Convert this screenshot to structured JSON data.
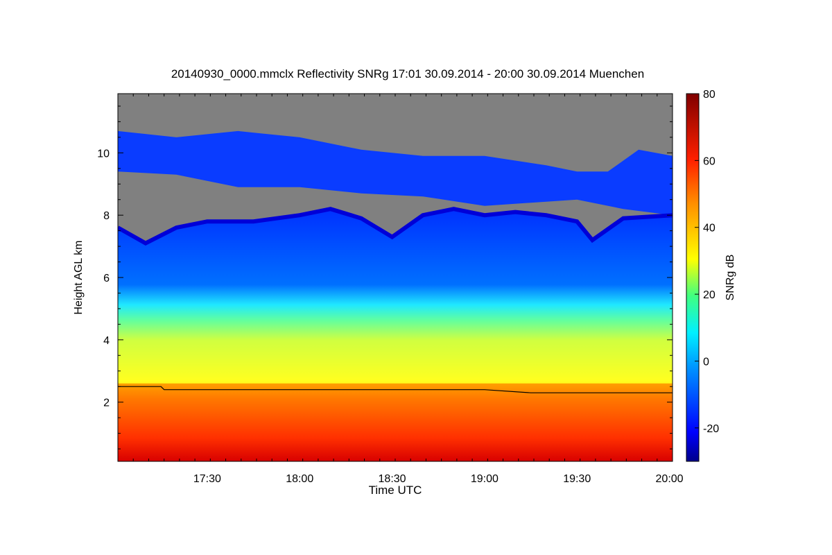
{
  "colors": {
    "no_signal": "#808080",
    "colormap": [
      "#00008a",
      "#0000ff",
      "#0080ff",
      "#00e0ff",
      "#40ff80",
      "#c0ff30",
      "#ffff00",
      "#ffb000",
      "#ff5000",
      "#e00000",
      "#800000"
    ]
  },
  "chart_data": {
    "type": "heatmap",
    "title": "20140930_0000.mmclx Reflectivity SNRg   17:01 30.09.2014 - 20:00 30.09.2014 Muenchen",
    "xlabel": "Time UTC",
    "ylabel": "Height AGL km",
    "colorbar_label": "SNRg dB",
    "xlim": [
      "17:01",
      "20:01"
    ],
    "xticks": [
      "17:30",
      "18:00",
      "18:30",
      "19:00",
      "19:30",
      "20:00"
    ],
    "ylim": [
      0.1,
      11.9
    ],
    "yticks": [
      "2",
      "4",
      "6",
      "8",
      "10"
    ],
    "clim": [
      -30,
      80
    ],
    "cbticks": [
      "-20",
      "0",
      "20",
      "40",
      "60",
      "80"
    ],
    "echo_top_km": [
      {
        "t": "17:01",
        "h": 7.6
      },
      {
        "t": "17:10",
        "h": 7.1
      },
      {
        "t": "17:20",
        "h": 7.6
      },
      {
        "t": "17:30",
        "h": 7.8
      },
      {
        "t": "17:45",
        "h": 7.8
      },
      {
        "t": "18:00",
        "h": 8.0
      },
      {
        "t": "18:10",
        "h": 8.2
      },
      {
        "t": "18:20",
        "h": 7.9
      },
      {
        "t": "18:30",
        "h": 7.3
      },
      {
        "t": "18:40",
        "h": 8.0
      },
      {
        "t": "18:50",
        "h": 8.2
      },
      {
        "t": "19:00",
        "h": 8.0
      },
      {
        "t": "19:10",
        "h": 8.1
      },
      {
        "t": "19:20",
        "h": 8.0
      },
      {
        "t": "19:30",
        "h": 7.8
      },
      {
        "t": "19:35",
        "h": 7.2
      },
      {
        "t": "19:45",
        "h": 7.9
      },
      {
        "t": "20:01",
        "h": 8.0
      }
    ],
    "cirrus_base_km": [
      {
        "t": "17:01",
        "h": 9.4
      },
      {
        "t": "17:20",
        "h": 9.3
      },
      {
        "t": "17:40",
        "h": 8.9
      },
      {
        "t": "18:00",
        "h": 8.9
      },
      {
        "t": "18:20",
        "h": 8.7
      },
      {
        "t": "18:40",
        "h": 8.6
      },
      {
        "t": "19:00",
        "h": 8.3
      },
      {
        "t": "19:15",
        "h": 8.4
      },
      {
        "t": "19:30",
        "h": 8.5
      },
      {
        "t": "19:45",
        "h": 8.2
      },
      {
        "t": "20:01",
        "h": 8.0
      }
    ],
    "cirrus_top_km": [
      {
        "t": "17:01",
        "h": 10.7
      },
      {
        "t": "17:20",
        "h": 10.5
      },
      {
        "t": "17:40",
        "h": 10.7
      },
      {
        "t": "18:00",
        "h": 10.5
      },
      {
        "t": "18:20",
        "h": 10.1
      },
      {
        "t": "18:40",
        "h": 9.9
      },
      {
        "t": "19:00",
        "h": 9.9
      },
      {
        "t": "19:20",
        "h": 9.6
      },
      {
        "t": "19:30",
        "h": 9.4
      },
      {
        "t": "19:40",
        "h": 9.4
      },
      {
        "t": "19:50",
        "h": 10.1
      },
      {
        "t": "20:01",
        "h": 9.9
      }
    ],
    "melting_layer_km": [
      {
        "t": "17:01",
        "h": 2.5
      },
      {
        "t": "17:15",
        "h": 2.5
      },
      {
        "t": "17:16",
        "h": 2.4
      },
      {
        "t": "19:00",
        "h": 2.4
      },
      {
        "t": "19:15",
        "h": 2.3
      },
      {
        "t": "20:01",
        "h": 2.3
      }
    ]
  }
}
